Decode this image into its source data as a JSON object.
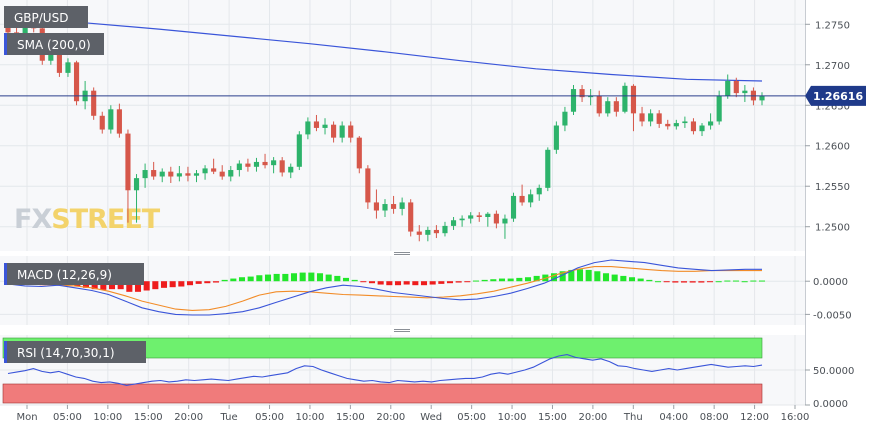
{
  "chart_data": {
    "type": "candlestick",
    "symbol": "GBP/USD",
    "overlay_label": "SMA (200,0)",
    "last_price": "1.26616",
    "price_axis_ticks": [
      "1.2750",
      "1.2700",
      "1.2650",
      "1.2600",
      "1.2550",
      "1.2500"
    ],
    "price_ylim": [
      1.247,
      1.278
    ],
    "x_ticks": [
      "Mon",
      "05:00",
      "10:00",
      "15:00",
      "20:00",
      "Tue",
      "05:00",
      "10:00",
      "15:00",
      "20:00",
      "Wed",
      "05:00",
      "10:00",
      "15:00",
      "20:00",
      "Thu",
      "04:00",
      "08:00",
      "12:00",
      "16:00"
    ],
    "candles": [
      [
        1.2748,
        1.2758,
        1.273,
        1.274
      ],
      [
        1.274,
        1.2749,
        1.2718,
        1.2727
      ],
      [
        1.2727,
        1.276,
        1.2722,
        1.2753
      ],
      [
        1.2753,
        1.276,
        1.274,
        1.2745
      ],
      [
        1.2745,
        1.2748,
        1.27,
        1.2705
      ],
      [
        1.2705,
        1.273,
        1.27,
        1.2725
      ],
      [
        1.2725,
        1.2728,
        1.2685,
        1.269
      ],
      [
        1.269,
        1.2708,
        1.2685,
        1.2703
      ],
      [
        1.2703,
        1.2705,
        1.265,
        1.2655
      ],
      [
        1.2655,
        1.268,
        1.2645,
        1.2668
      ],
      [
        1.2668,
        1.2672,
        1.2632,
        1.2637
      ],
      [
        1.2637,
        1.2642,
        1.2615,
        1.262
      ],
      [
        1.262,
        1.265,
        1.2615,
        1.2645
      ],
      [
        1.2645,
        1.2652,
        1.261,
        1.2615
      ],
      [
        1.2615,
        1.262,
        1.2505,
        1.2545
      ],
      [
        1.2545,
        1.2565,
        1.2505,
        1.256
      ],
      [
        1.256,
        1.2578,
        1.2548,
        1.257
      ],
      [
        1.257,
        1.258,
        1.2558,
        1.2562
      ],
      [
        1.2562,
        1.2572,
        1.2555,
        1.2568
      ],
      [
        1.2568,
        1.2574,
        1.2554,
        1.2562
      ],
      [
        1.2562,
        1.2575,
        1.2556,
        1.2566
      ],
      [
        1.2566,
        1.2574,
        1.2556,
        1.2563
      ],
      [
        1.2563,
        1.257,
        1.2555,
        1.2566
      ],
      [
        1.2566,
        1.2576,
        1.2558,
        1.2572
      ],
      [
        1.2572,
        1.2584,
        1.2565,
        1.2568
      ],
      [
        1.2568,
        1.2576,
        1.2558,
        1.2562
      ],
      [
        1.2562,
        1.2575,
        1.2556,
        1.257
      ],
      [
        1.257,
        1.2582,
        1.2562,
        1.2578
      ],
      [
        1.2578,
        1.2584,
        1.2568,
        1.2574
      ],
      [
        1.2574,
        1.2585,
        1.2568,
        1.258
      ],
      [
        1.258,
        1.259,
        1.2572,
        1.2576
      ],
      [
        1.2576,
        1.2586,
        1.2566,
        1.2582
      ],
      [
        1.2582,
        1.2586,
        1.2562,
        1.2567
      ],
      [
        1.2567,
        1.2578,
        1.256,
        1.2574
      ],
      [
        1.2574,
        1.2618,
        1.257,
        1.2614
      ],
      [
        1.2614,
        1.2635,
        1.2608,
        1.263
      ],
      [
        1.263,
        1.2638,
        1.2618,
        1.2622
      ],
      [
        1.2622,
        1.2634,
        1.2614,
        1.2626
      ],
      [
        1.2626,
        1.263,
        1.2604,
        1.261
      ],
      [
        1.261,
        1.263,
        1.2604,
        1.2625
      ],
      [
        1.2625,
        1.263,
        1.2604,
        1.261
      ],
      [
        1.261,
        1.2612,
        1.2566,
        1.2572
      ],
      [
        1.2572,
        1.2576,
        1.2522,
        1.253
      ],
      [
        1.253,
        1.2546,
        1.251,
        1.252
      ],
      [
        1.252,
        1.2534,
        1.2512,
        1.2528
      ],
      [
        1.2528,
        1.2538,
        1.2516,
        1.2522
      ],
      [
        1.2522,
        1.2536,
        1.2514,
        1.253
      ],
      [
        1.253,
        1.2534,
        1.2488,
        1.2494
      ],
      [
        1.2494,
        1.2502,
        1.2482,
        1.249
      ],
      [
        1.249,
        1.25,
        1.2482,
        1.2496
      ],
      [
        1.2496,
        1.2502,
        1.2486,
        1.2492
      ],
      [
        1.2492,
        1.2506,
        1.2488,
        1.2501
      ],
      [
        1.2501,
        1.2512,
        1.2496,
        1.2508
      ],
      [
        1.2508,
        1.2514,
        1.25,
        1.251
      ],
      [
        1.251,
        1.2518,
        1.2504,
        1.2514
      ],
      [
        1.2514,
        1.2518,
        1.2506,
        1.2512
      ],
      [
        1.2512,
        1.2518,
        1.25,
        1.2516
      ],
      [
        1.2516,
        1.252,
        1.2498,
        1.2504
      ],
      [
        1.2504,
        1.2515,
        1.2485,
        1.251
      ],
      [
        1.251,
        1.2542,
        1.2506,
        1.2538
      ],
      [
        1.2538,
        1.2552,
        1.2526,
        1.253
      ],
      [
        1.253,
        1.2546,
        1.2524,
        1.254
      ],
      [
        1.254,
        1.2552,
        1.2532,
        1.2548
      ],
      [
        1.2548,
        1.2598,
        1.2544,
        1.2595
      ],
      [
        1.2595,
        1.263,
        1.259,
        1.2625
      ],
      [
        1.2625,
        1.2648,
        1.2618,
        1.2642
      ],
      [
        1.2642,
        1.2675,
        1.2638,
        1.267
      ],
      [
        1.267,
        1.2675,
        1.2654,
        1.266
      ],
      [
        1.266,
        1.267,
        1.265,
        1.2662
      ],
      [
        1.2662,
        1.2668,
        1.2636,
        1.264
      ],
      [
        1.264,
        1.266,
        1.2636,
        1.2655
      ],
      [
        1.2655,
        1.266,
        1.2636,
        1.2642
      ],
      [
        1.2642,
        1.2678,
        1.264,
        1.2674
      ],
      [
        1.2674,
        1.2676,
        1.2618,
        1.264
      ],
      [
        1.264,
        1.2648,
        1.2624,
        1.263
      ],
      [
        1.263,
        1.2645,
        1.2624,
        1.264
      ],
      [
        1.264,
        1.2644,
        1.2622,
        1.2627
      ],
      [
        1.2627,
        1.2632,
        1.262,
        1.2624
      ],
      [
        1.2624,
        1.2632,
        1.262,
        1.2628
      ],
      [
        1.2628,
        1.2636,
        1.2622,
        1.263
      ],
      [
        1.263,
        1.2634,
        1.2614,
        1.2618
      ],
      [
        1.2618,
        1.2628,
        1.2612,
        1.2625
      ],
      [
        1.2625,
        1.264,
        1.262,
        1.263
      ],
      [
        1.263,
        1.2668,
        1.2626,
        1.2662
      ],
      [
        1.2662,
        1.2688,
        1.2658,
        1.268
      ],
      [
        1.268,
        1.2684,
        1.266,
        1.2665
      ],
      [
        1.2665,
        1.2675,
        1.2654,
        1.2668
      ],
      [
        1.2668,
        1.2672,
        1.265,
        1.2656
      ],
      [
        1.2656,
        1.2666,
        1.265,
        1.2662
      ]
    ],
    "sma200": [
      1.276,
      1.2752,
      1.2744,
      1.2735,
      1.2726,
      1.2716,
      1.2705,
      1.2695,
      1.2688,
      1.2682,
      1.268
    ],
    "macd_label": "MACD (12,26,9)",
    "macd_axis_ticks": [
      "0.0000",
      "-0.0050"
    ],
    "macd_ylim": [
      -0.0066,
      0.0038
    ],
    "macd_hist": [
      -0.0004,
      -0.0005,
      -0.0004,
      -0.0003,
      -0.0006,
      -0.0005,
      -0.0006,
      -0.0004,
      -0.0008,
      -0.001,
      -0.0012,
      -0.0013,
      -0.0012,
      -0.0012,
      -0.0016,
      -0.0016,
      -0.0014,
      -0.0012,
      -0.001,
      -0.0009,
      -0.0008,
      -0.0006,
      -0.0004,
      -0.0003,
      -0.0002,
      0.0002,
      0.0004,
      0.0006,
      0.0007,
      0.0009,
      0.001,
      0.0011,
      0.0011,
      0.0012,
      0.0013,
      0.0013,
      0.0012,
      0.001,
      0.0008,
      0.0005,
      0.0002,
      -0.0001,
      -0.0003,
      -0.0005,
      -0.0006,
      -0.0006,
      -0.0005,
      -0.0006,
      -0.0006,
      -0.0005,
      -0.0004,
      -0.0003,
      -0.0002,
      -0.0001,
      0.0001,
      0.0002,
      0.0003,
      0.0004,
      0.0004,
      0.0005,
      0.0006,
      0.0008,
      0.001,
      0.0012,
      0.0015,
      0.0017,
      0.0018,
      0.0017,
      0.0015,
      0.0012,
      0.001,
      0.0008,
      0.0006,
      0.0004,
      0.0002,
      0.0,
      -0.0001,
      -0.0002,
      -0.0002,
      -0.0002,
      -0.0002,
      -0.0001,
      0.0,
      0.0001,
      0.0001,
      0.0,
      0.0001,
      0.0001
    ],
    "macd_line": [
      -0.0004,
      -0.0007,
      -0.0008,
      -0.0006,
      -0.001,
      -0.0014,
      -0.002,
      -0.003,
      -0.004,
      -0.0046,
      -0.005,
      -0.0051,
      -0.0051,
      -0.0049,
      -0.0046,
      -0.004,
      -0.0032,
      -0.0024,
      -0.0016,
      -0.001,
      -0.0006,
      -0.0008,
      -0.0012,
      -0.0017,
      -0.002,
      -0.0023,
      -0.0026,
      -0.0028,
      -0.0027,
      -0.0023,
      -0.0018,
      -0.0011,
      -0.0003,
      0.0008,
      0.002,
      0.0028,
      0.0032,
      0.003,
      0.0028,
      0.0024,
      0.002,
      0.0018,
      0.0016,
      0.0017,
      0.0018,
      0.0018
    ],
    "macd_signal": [
      -0.0002,
      -0.0003,
      -0.0005,
      -0.0006,
      -0.0007,
      -0.001,
      -0.0015,
      -0.0022,
      -0.003,
      -0.0036,
      -0.0042,
      -0.0044,
      -0.0043,
      -0.0038,
      -0.003,
      -0.0021,
      -0.0016,
      -0.0015,
      -0.0016,
      -0.0018,
      -0.002,
      -0.0021,
      -0.0022,
      -0.0023,
      -0.0024,
      -0.0025,
      -0.0024,
      -0.0022,
      -0.0019,
      -0.0015,
      -0.0009,
      -0.0003,
      0.0004,
      0.0012,
      0.0018,
      0.0022,
      0.0022,
      0.002,
      0.0018,
      0.0016,
      0.0015,
      0.0015,
      0.0016,
      0.0016,
      0.0016,
      0.0016
    ],
    "rsi_label": "RSI (14,70,30,1)",
    "rsi_axis_ticks": [
      "50.0000",
      "0.0000"
    ],
    "rsi_ylim": [
      0,
      100
    ],
    "rsi_overbought": 70,
    "rsi_oversold": 30,
    "rsi_line": [
      45,
      47,
      49,
      52,
      48,
      46,
      48,
      44,
      40,
      38,
      34,
      32,
      33,
      31,
      28,
      30,
      32,
      34,
      35,
      33,
      34,
      36,
      35,
      36,
      37,
      36,
      35,
      37,
      39,
      41,
      40,
      42,
      44,
      46,
      52,
      56,
      55,
      50,
      46,
      42,
      38,
      36,
      34,
      35,
      33,
      32,
      35,
      34,
      33,
      34,
      33,
      35,
      36,
      37,
      38,
      38,
      40,
      44,
      46,
      44,
      47,
      50,
      54,
      60,
      66,
      70,
      72,
      68,
      66,
      64,
      66,
      62,
      56,
      55,
      52,
      50,
      48,
      50,
      52,
      50,
      52,
      54,
      56,
      58,
      56,
      54,
      55,
      56,
      55,
      57
    ],
    "colors": {
      "bull": "#2db36b",
      "bear": "#d6574a",
      "sma": "#3a55d9",
      "macd_line": "#3a55d9",
      "macd_signal": "#f28c28",
      "hist_pos": "#22e62a",
      "hist_neg": "#ee1c1c",
      "rsi_line": "#3a55d9",
      "rsi_ob": "#6ef06e",
      "rsi_os": "#f07b7b"
    },
    "watermark": [
      "FX",
      "STREET"
    ]
  }
}
